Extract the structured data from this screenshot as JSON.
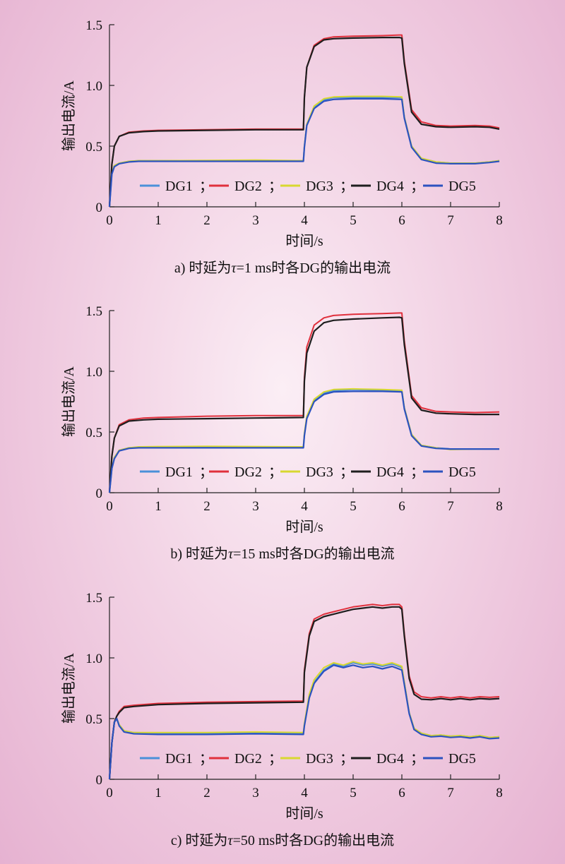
{
  "chart_data": [
    {
      "type": "line",
      "caption": "a) 时延为τ=1 ms时各DG的输出电流",
      "caption_parts": {
        "pre": "a) 时延为",
        "tau": "τ",
        "post": "=1 ms时各DG的输出电流"
      },
      "xlabel": "时间/s",
      "ylabel": "输出电流/A",
      "xlim": [
        0,
        8
      ],
      "ylim": [
        0,
        1.5
      ],
      "xticks": [
        0,
        1,
        2,
        3,
        4,
        5,
        6,
        7,
        8
      ],
      "yticks": [
        0,
        0.5,
        1.0,
        1.5
      ],
      "ytick_labels": [
        "0",
        "0.5",
        "1.0",
        "1.5"
      ],
      "grid": false,
      "legend_position": "bottom-center",
      "series": [
        {
          "name": "DG1",
          "color": "#4a90d9",
          "x": [
            0,
            0.05,
            0.1,
            0.2,
            0.4,
            0.6,
            1,
            2,
            3,
            3.98,
            4.0,
            4.05,
            4.2,
            4.4,
            4.6,
            5,
            5.6,
            6.0,
            6.05,
            6.2,
            6.4,
            6.7,
            7,
            7.5,
            7.8,
            8
          ],
          "y": [
            0,
            0.28,
            0.34,
            0.36,
            0.375,
            0.38,
            0.38,
            0.38,
            0.38,
            0.38,
            0.5,
            0.68,
            0.82,
            0.88,
            0.9,
            0.9,
            0.9,
            0.9,
            0.74,
            0.5,
            0.4,
            0.37,
            0.36,
            0.36,
            0.37,
            0.38
          ]
        },
        {
          "name": "DG2",
          "color": "#e0303c",
          "x": [
            0,
            0.05,
            0.1,
            0.2,
            0.4,
            0.7,
            1,
            2,
            3,
            3.98,
            4.0,
            4.05,
            4.2,
            4.4,
            4.6,
            5,
            5.6,
            5.95,
            6.0,
            6.05,
            6.2,
            6.4,
            6.7,
            7,
            7.5,
            7.8,
            8
          ],
          "y": [
            0,
            0.35,
            0.5,
            0.58,
            0.615,
            0.625,
            0.63,
            0.635,
            0.64,
            0.64,
            0.9,
            1.15,
            1.33,
            1.385,
            1.4,
            1.405,
            1.41,
            1.415,
            1.415,
            1.2,
            0.8,
            0.7,
            0.67,
            0.665,
            0.67,
            0.665,
            0.65
          ]
        },
        {
          "name": "DG3",
          "color": "#d8d830",
          "x": [
            0,
            0.05,
            0.1,
            0.2,
            0.4,
            0.6,
            1,
            2,
            3,
            3.98,
            4.0,
            4.05,
            4.2,
            4.4,
            4.6,
            5,
            5.6,
            6.0,
            6.05,
            6.2,
            6.4,
            6.7,
            7,
            7.5,
            7.8,
            8
          ],
          "y": [
            0,
            0.28,
            0.34,
            0.36,
            0.375,
            0.38,
            0.38,
            0.382,
            0.385,
            0.38,
            0.5,
            0.68,
            0.83,
            0.89,
            0.905,
            0.91,
            0.91,
            0.905,
            0.74,
            0.5,
            0.4,
            0.37,
            0.36,
            0.36,
            0.37,
            0.38
          ]
        },
        {
          "name": "DG4",
          "color": "#1e1e1e",
          "x": [
            0,
            0.05,
            0.1,
            0.2,
            0.4,
            0.7,
            1,
            2,
            3,
            3.98,
            4.0,
            4.05,
            4.2,
            4.4,
            4.6,
            5,
            5.6,
            5.95,
            6.0,
            6.05,
            6.2,
            6.4,
            6.7,
            7,
            7.5,
            7.8,
            8
          ],
          "y": [
            0,
            0.35,
            0.5,
            0.58,
            0.61,
            0.62,
            0.625,
            0.63,
            0.635,
            0.635,
            0.9,
            1.15,
            1.32,
            1.375,
            1.385,
            1.39,
            1.395,
            1.395,
            1.39,
            1.18,
            0.78,
            0.68,
            0.66,
            0.655,
            0.66,
            0.655,
            0.64
          ]
        },
        {
          "name": "DG5",
          "color": "#2c52bf",
          "x": [
            0,
            0.05,
            0.1,
            0.2,
            0.4,
            0.6,
            1,
            2,
            3,
            3.98,
            4.0,
            4.05,
            4.2,
            4.4,
            4.6,
            5,
            5.6,
            6.0,
            6.05,
            6.2,
            6.4,
            6.7,
            7,
            7.5,
            7.8,
            8
          ],
          "y": [
            0,
            0.27,
            0.33,
            0.355,
            0.37,
            0.375,
            0.375,
            0.375,
            0.375,
            0.375,
            0.49,
            0.67,
            0.81,
            0.87,
            0.885,
            0.89,
            0.89,
            0.885,
            0.73,
            0.49,
            0.39,
            0.36,
            0.355,
            0.355,
            0.365,
            0.375
          ]
        }
      ]
    },
    {
      "type": "line",
      "caption": "b) 时延为τ=15 ms时各DG的输出电流",
      "caption_parts": {
        "pre": "b) 时延为",
        "tau": "τ",
        "post": "=15 ms时各DG的输出电流"
      },
      "xlabel": "时间/s",
      "ylabel": "输出电流/A",
      "xlim": [
        0,
        8
      ],
      "ylim": [
        0,
        1.5
      ],
      "xticks": [
        0,
        1,
        2,
        3,
        4,
        5,
        6,
        7,
        8
      ],
      "yticks": [
        0,
        0.5,
        1.0,
        1.5
      ],
      "ytick_labels": [
        "0",
        "0.5",
        "1.0",
        "1.5"
      ],
      "grid": false,
      "legend_position": "bottom-center",
      "series": [
        {
          "name": "DG1",
          "color": "#4a90d9",
          "x": [
            0,
            0.05,
            0.1,
            0.2,
            0.4,
            0.6,
            1,
            2,
            3,
            3.98,
            4.0,
            4.05,
            4.2,
            4.4,
            4.6,
            5,
            5.6,
            6.0,
            6.05,
            6.2,
            6.4,
            6.7,
            7,
            7.5,
            8
          ],
          "y": [
            0,
            0.2,
            0.29,
            0.35,
            0.37,
            0.375,
            0.375,
            0.375,
            0.375,
            0.375,
            0.48,
            0.62,
            0.76,
            0.82,
            0.84,
            0.85,
            0.845,
            0.84,
            0.7,
            0.48,
            0.39,
            0.37,
            0.36,
            0.36,
            0.36
          ]
        },
        {
          "name": "DG2",
          "color": "#e0303c",
          "x": [
            0,
            0.05,
            0.1,
            0.2,
            0.4,
            0.7,
            1,
            2,
            3,
            3.98,
            4.0,
            4.05,
            4.2,
            4.4,
            4.6,
            5,
            5.6,
            5.95,
            6.0,
            6.05,
            6.2,
            6.4,
            6.7,
            7,
            7.5,
            8
          ],
          "y": [
            0,
            0.3,
            0.45,
            0.56,
            0.6,
            0.615,
            0.62,
            0.63,
            0.635,
            0.635,
            0.95,
            1.2,
            1.38,
            1.44,
            1.46,
            1.47,
            1.475,
            1.48,
            1.48,
            1.25,
            0.8,
            0.7,
            0.67,
            0.665,
            0.66,
            0.665
          ]
        },
        {
          "name": "DG3",
          "color": "#d8d830",
          "x": [
            0,
            0.05,
            0.1,
            0.2,
            0.4,
            0.6,
            1,
            2,
            3,
            3.98,
            4.0,
            4.05,
            4.2,
            4.4,
            4.6,
            5,
            5.6,
            6.0,
            6.05,
            6.2,
            6.4,
            6.7,
            7,
            7.5,
            8
          ],
          "y": [
            0,
            0.2,
            0.29,
            0.35,
            0.37,
            0.378,
            0.38,
            0.382,
            0.38,
            0.378,
            0.49,
            0.63,
            0.77,
            0.83,
            0.85,
            0.855,
            0.85,
            0.845,
            0.7,
            0.48,
            0.39,
            0.37,
            0.355,
            0.36,
            0.36
          ]
        },
        {
          "name": "DG4",
          "color": "#1e1e1e",
          "x": [
            0,
            0.05,
            0.1,
            0.2,
            0.4,
            0.7,
            1,
            2,
            3,
            3.98,
            4.0,
            4.05,
            4.2,
            4.4,
            4.6,
            5,
            5.6,
            5.95,
            6.0,
            6.05,
            6.2,
            6.4,
            6.7,
            7,
            7.5,
            8
          ],
          "y": [
            0,
            0.3,
            0.45,
            0.55,
            0.59,
            0.6,
            0.605,
            0.61,
            0.615,
            0.62,
            0.92,
            1.15,
            1.33,
            1.4,
            1.42,
            1.43,
            1.44,
            1.445,
            1.44,
            1.22,
            0.78,
            0.68,
            0.655,
            0.65,
            0.645,
            0.645
          ]
        },
        {
          "name": "DG5",
          "color": "#2c52bf",
          "x": [
            0,
            0.05,
            0.1,
            0.2,
            0.4,
            0.6,
            1,
            2,
            3,
            3.98,
            4.0,
            4.05,
            4.2,
            4.4,
            4.6,
            5,
            5.6,
            6.0,
            6.05,
            6.2,
            6.4,
            6.7,
            7,
            7.5,
            8
          ],
          "y": [
            0,
            0.2,
            0.28,
            0.345,
            0.365,
            0.37,
            0.37,
            0.37,
            0.37,
            0.37,
            0.47,
            0.61,
            0.75,
            0.81,
            0.83,
            0.835,
            0.835,
            0.83,
            0.69,
            0.47,
            0.385,
            0.365,
            0.36,
            0.36,
            0.36
          ]
        }
      ]
    },
    {
      "type": "line",
      "caption": "c) 时延为τ=50 ms时各DG的输出电流",
      "caption_parts": {
        "pre": "c) 时延为",
        "tau": "τ",
        "post": "=50 ms时各DG的输出电流"
      },
      "xlabel": "时间/s",
      "ylabel": "输出电流/A",
      "xlim": [
        0,
        8
      ],
      "ylim": [
        0,
        1.5
      ],
      "xticks": [
        0,
        1,
        2,
        3,
        4,
        5,
        6,
        7,
        8
      ],
      "yticks": [
        0,
        0.5,
        1.0,
        1.5
      ],
      "ytick_labels": [
        "0",
        "0.5",
        "1.0",
        "1.5"
      ],
      "grid": false,
      "legend_position": "bottom-center",
      "series": [
        {
          "name": "DG1",
          "color": "#4a90d9",
          "x": [
            0,
            0.05,
            0.1,
            0.15,
            0.2,
            0.3,
            0.5,
            1,
            2,
            3,
            3.98,
            4.0,
            4.1,
            4.2,
            4.4,
            4.6,
            4.8,
            5,
            5.2,
            5.4,
            5.6,
            5.8,
            6.0,
            6.05,
            6.15,
            6.25,
            6.4,
            6.6,
            6.8,
            7,
            7.2,
            7.4,
            7.6,
            7.8,
            8
          ],
          "y": [
            0,
            0.3,
            0.47,
            0.5,
            0.45,
            0.4,
            0.385,
            0.38,
            0.38,
            0.385,
            0.38,
            0.45,
            0.68,
            0.8,
            0.9,
            0.95,
            0.93,
            0.96,
            0.94,
            0.95,
            0.93,
            0.95,
            0.92,
            0.8,
            0.55,
            0.42,
            0.38,
            0.36,
            0.365,
            0.355,
            0.36,
            0.35,
            0.36,
            0.345,
            0.35
          ]
        },
        {
          "name": "DG2",
          "color": "#e0303c",
          "x": [
            0,
            0.05,
            0.1,
            0.15,
            0.2,
            0.3,
            0.5,
            1,
            2,
            3,
            3.98,
            4.0,
            4.1,
            4.2,
            4.4,
            4.6,
            4.8,
            5,
            5.2,
            5.4,
            5.6,
            5.8,
            5.95,
            6.0,
            6.05,
            6.15,
            6.25,
            6.4,
            6.6,
            6.8,
            7,
            7.2,
            7.4,
            7.6,
            7.8,
            8
          ],
          "y": [
            0,
            0.3,
            0.47,
            0.52,
            0.56,
            0.6,
            0.61,
            0.625,
            0.635,
            0.64,
            0.645,
            0.9,
            1.2,
            1.32,
            1.36,
            1.38,
            1.4,
            1.42,
            1.43,
            1.44,
            1.43,
            1.44,
            1.44,
            1.42,
            1.2,
            0.85,
            0.72,
            0.68,
            0.67,
            0.68,
            0.67,
            0.68,
            0.67,
            0.68,
            0.675,
            0.68
          ]
        },
        {
          "name": "DG3",
          "color": "#d8d830",
          "x": [
            0,
            0.05,
            0.1,
            0.15,
            0.2,
            0.3,
            0.5,
            1,
            2,
            3,
            3.98,
            4.0,
            4.1,
            4.2,
            4.4,
            4.6,
            4.8,
            5,
            5.2,
            5.4,
            5.6,
            5.8,
            6.0,
            6.05,
            6.15,
            6.25,
            6.4,
            6.6,
            6.8,
            7,
            7.2,
            7.4,
            7.6,
            7.8,
            8
          ],
          "y": [
            0,
            0.3,
            0.47,
            0.5,
            0.45,
            0.4,
            0.385,
            0.385,
            0.385,
            0.39,
            0.385,
            0.46,
            0.7,
            0.82,
            0.92,
            0.96,
            0.94,
            0.97,
            0.95,
            0.96,
            0.94,
            0.96,
            0.93,
            0.8,
            0.55,
            0.42,
            0.38,
            0.36,
            0.365,
            0.355,
            0.36,
            0.35,
            0.36,
            0.345,
            0.35
          ]
        },
        {
          "name": "DG4",
          "color": "#1e1e1e",
          "x": [
            0,
            0.05,
            0.1,
            0.15,
            0.2,
            0.3,
            0.5,
            1,
            2,
            3,
            3.98,
            4.0,
            4.1,
            4.2,
            4.4,
            4.6,
            4.8,
            5,
            5.2,
            5.4,
            5.6,
            5.8,
            5.95,
            6.0,
            6.05,
            6.15,
            6.25,
            6.4,
            6.6,
            6.8,
            7,
            7.2,
            7.4,
            7.6,
            7.8,
            8
          ],
          "y": [
            0,
            0.3,
            0.47,
            0.52,
            0.55,
            0.59,
            0.6,
            0.615,
            0.625,
            0.63,
            0.635,
            0.88,
            1.18,
            1.3,
            1.34,
            1.36,
            1.38,
            1.4,
            1.41,
            1.42,
            1.41,
            1.42,
            1.42,
            1.4,
            1.18,
            0.83,
            0.7,
            0.66,
            0.655,
            0.665,
            0.655,
            0.665,
            0.655,
            0.665,
            0.66,
            0.665
          ]
        },
        {
          "name": "DG5",
          "color": "#2c52bf",
          "x": [
            0,
            0.05,
            0.1,
            0.15,
            0.2,
            0.3,
            0.5,
            1,
            2,
            3,
            3.98,
            4.0,
            4.1,
            4.2,
            4.4,
            4.6,
            4.8,
            5,
            5.2,
            5.4,
            5.6,
            5.8,
            6.0,
            6.05,
            6.15,
            6.25,
            6.4,
            6.6,
            6.8,
            7,
            7.2,
            7.4,
            7.6,
            7.8,
            8
          ],
          "y": [
            0,
            0.3,
            0.47,
            0.5,
            0.44,
            0.39,
            0.375,
            0.37,
            0.37,
            0.375,
            0.37,
            0.44,
            0.67,
            0.79,
            0.89,
            0.94,
            0.92,
            0.94,
            0.92,
            0.93,
            0.91,
            0.93,
            0.9,
            0.78,
            0.54,
            0.41,
            0.37,
            0.35,
            0.355,
            0.345,
            0.35,
            0.34,
            0.35,
            0.335,
            0.34
          ]
        }
      ]
    }
  ]
}
